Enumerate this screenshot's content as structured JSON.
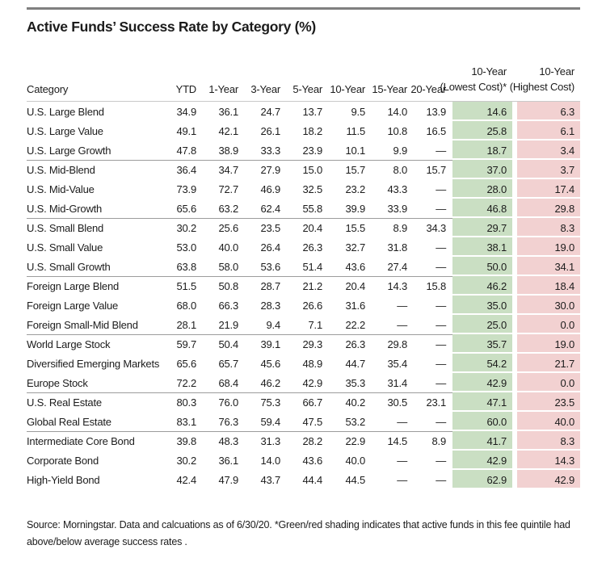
{
  "title": "Active Funds’ Success Rate by Category (%)",
  "colors": {
    "green_shading": "#cadfc3",
    "pink_shading": "#f2d1d1",
    "top_rule": "#7f7f7f",
    "header_underline": "#c9c9c9",
    "group_separator": "#9c9c9c",
    "text": "#1c1c1c"
  },
  "table": {
    "headers": {
      "category": "Category",
      "periods": [
        "YTD",
        "1-Year",
        "3-Year",
        "5-Year",
        "10-Year",
        "15-Year",
        "20-Year"
      ],
      "lowest_cost": {
        "line1": "10-Year",
        "line2": "(Lowest Cost)*"
      },
      "highest_cost": {
        "line1": "10-Year",
        "line2": "(Highest Cost)"
      }
    },
    "groups": [
      {
        "rows": [
          {
            "category": "U.S. Large Blend",
            "values": [
              "34.9",
              "36.1",
              "24.7",
              "13.7",
              "9.5",
              "14.0",
              "13.9"
            ],
            "lowest": "14.6",
            "highest": "6.3"
          },
          {
            "category": "U.S. Large Value",
            "values": [
              "49.1",
              "42.1",
              "26.1",
              "18.2",
              "11.5",
              "10.8",
              "16.5"
            ],
            "lowest": "25.8",
            "highest": "6.1"
          },
          {
            "category": "U.S. Large Growth",
            "values": [
              "47.8",
              "38.9",
              "33.3",
              "23.9",
              "10.1",
              "9.9",
              "—"
            ],
            "lowest": "18.7",
            "highest": "3.4"
          }
        ]
      },
      {
        "rows": [
          {
            "category": "U.S. Mid-Blend",
            "values": [
              "36.4",
              "34.7",
              "27.9",
              "15.0",
              "15.7",
              "8.0",
              "15.7"
            ],
            "lowest": "37.0",
            "highest": "3.7"
          },
          {
            "category": "U.S. Mid-Value",
            "values": [
              "73.9",
              "72.7",
              "46.9",
              "32.5",
              "23.2",
              "43.3",
              "—"
            ],
            "lowest": "28.0",
            "highest": "17.4"
          },
          {
            "category": "U.S. Mid-Growth",
            "values": [
              "65.6",
              "63.2",
              "62.4",
              "55.8",
              "39.9",
              "33.9",
              "—"
            ],
            "lowest": "46.8",
            "highest": "29.8"
          }
        ]
      },
      {
        "rows": [
          {
            "category": "U.S. Small Blend",
            "values": [
              "30.2",
              "25.6",
              "23.5",
              "20.4",
              "15.5",
              "8.9",
              "34.3"
            ],
            "lowest": "29.7",
            "highest": "8.3"
          },
          {
            "category": "U.S. Small Value",
            "values": [
              "53.0",
              "40.0",
              "26.4",
              "26.3",
              "32.7",
              "31.8",
              "—"
            ],
            "lowest": "38.1",
            "highest": "19.0"
          },
          {
            "category": "U.S. Small Growth",
            "values": [
              "63.8",
              "58.0",
              "53.6",
              "51.4",
              "43.6",
              "27.4",
              "—"
            ],
            "lowest": "50.0",
            "highest": "34.1"
          }
        ]
      },
      {
        "rows": [
          {
            "category": "Foreign Large Blend",
            "values": [
              "51.5",
              "50.8",
              "28.7",
              "21.2",
              "20.4",
              "14.3",
              "15.8"
            ],
            "lowest": "46.2",
            "highest": "18.4"
          },
          {
            "category": "Foreign Large Value",
            "values": [
              "68.0",
              "66.3",
              "28.3",
              "26.6",
              "31.6",
              "—",
              "—"
            ],
            "lowest": "35.0",
            "highest": "30.0"
          },
          {
            "category": "Foreign Small-Mid Blend",
            "values": [
              "28.1",
              "21.9",
              "9.4",
              "7.1",
              "22.2",
              "—",
              "—"
            ],
            "lowest": "25.0",
            "highest": "0.0"
          }
        ]
      },
      {
        "rows": [
          {
            "category": "World Large Stock",
            "values": [
              "59.7",
              "50.4",
              "39.1",
              "29.3",
              "26.3",
              "29.8",
              "—"
            ],
            "lowest": "35.7",
            "highest": "19.0"
          },
          {
            "category": "Diversified Emerging Markets",
            "values": [
              "65.6",
              "65.7",
              "45.6",
              "48.9",
              "44.7",
              "35.4",
              "—"
            ],
            "lowest": "54.2",
            "highest": "21.7"
          },
          {
            "category": "Europe Stock",
            "values": [
              "72.2",
              "68.4",
              "46.2",
              "42.9",
              "35.3",
              "31.4",
              "—"
            ],
            "lowest": "42.9",
            "highest": "0.0"
          }
        ]
      },
      {
        "rows": [
          {
            "category": "U.S. Real Estate",
            "values": [
              "80.3",
              "76.0",
              "75.3",
              "66.7",
              "40.2",
              "30.5",
              "23.1"
            ],
            "lowest": "47.1",
            "highest": "23.5"
          },
          {
            "category": "Global Real Estate",
            "values": [
              "83.1",
              "76.3",
              "59.4",
              "47.5",
              "53.2",
              "—",
              "—"
            ],
            "lowest": "60.0",
            "highest": "40.0"
          }
        ]
      },
      {
        "rows": [
          {
            "category": "Intermediate Core Bond",
            "values": [
              "39.8",
              "48.3",
              "31.3",
              "28.2",
              "22.9",
              "14.5",
              "8.9"
            ],
            "lowest": "41.7",
            "highest": "8.3"
          },
          {
            "category": "Corporate Bond",
            "values": [
              "30.2",
              "36.1",
              "14.0",
              "43.6",
              "40.0",
              "—",
              "—"
            ],
            "lowest": "42.9",
            "highest": "14.3"
          },
          {
            "category": "High-Yield Bond",
            "values": [
              "42.4",
              "47.9",
              "43.7",
              "44.4",
              "44.5",
              "—",
              "—"
            ],
            "lowest": "62.9",
            "highest": "42.9"
          }
        ]
      }
    ]
  },
  "footnote": "Source: Morningstar. Data and calcuations as of 6/30/20. *Green/red shading indicates that active funds in this fee quintile had above/below average success rates ."
}
